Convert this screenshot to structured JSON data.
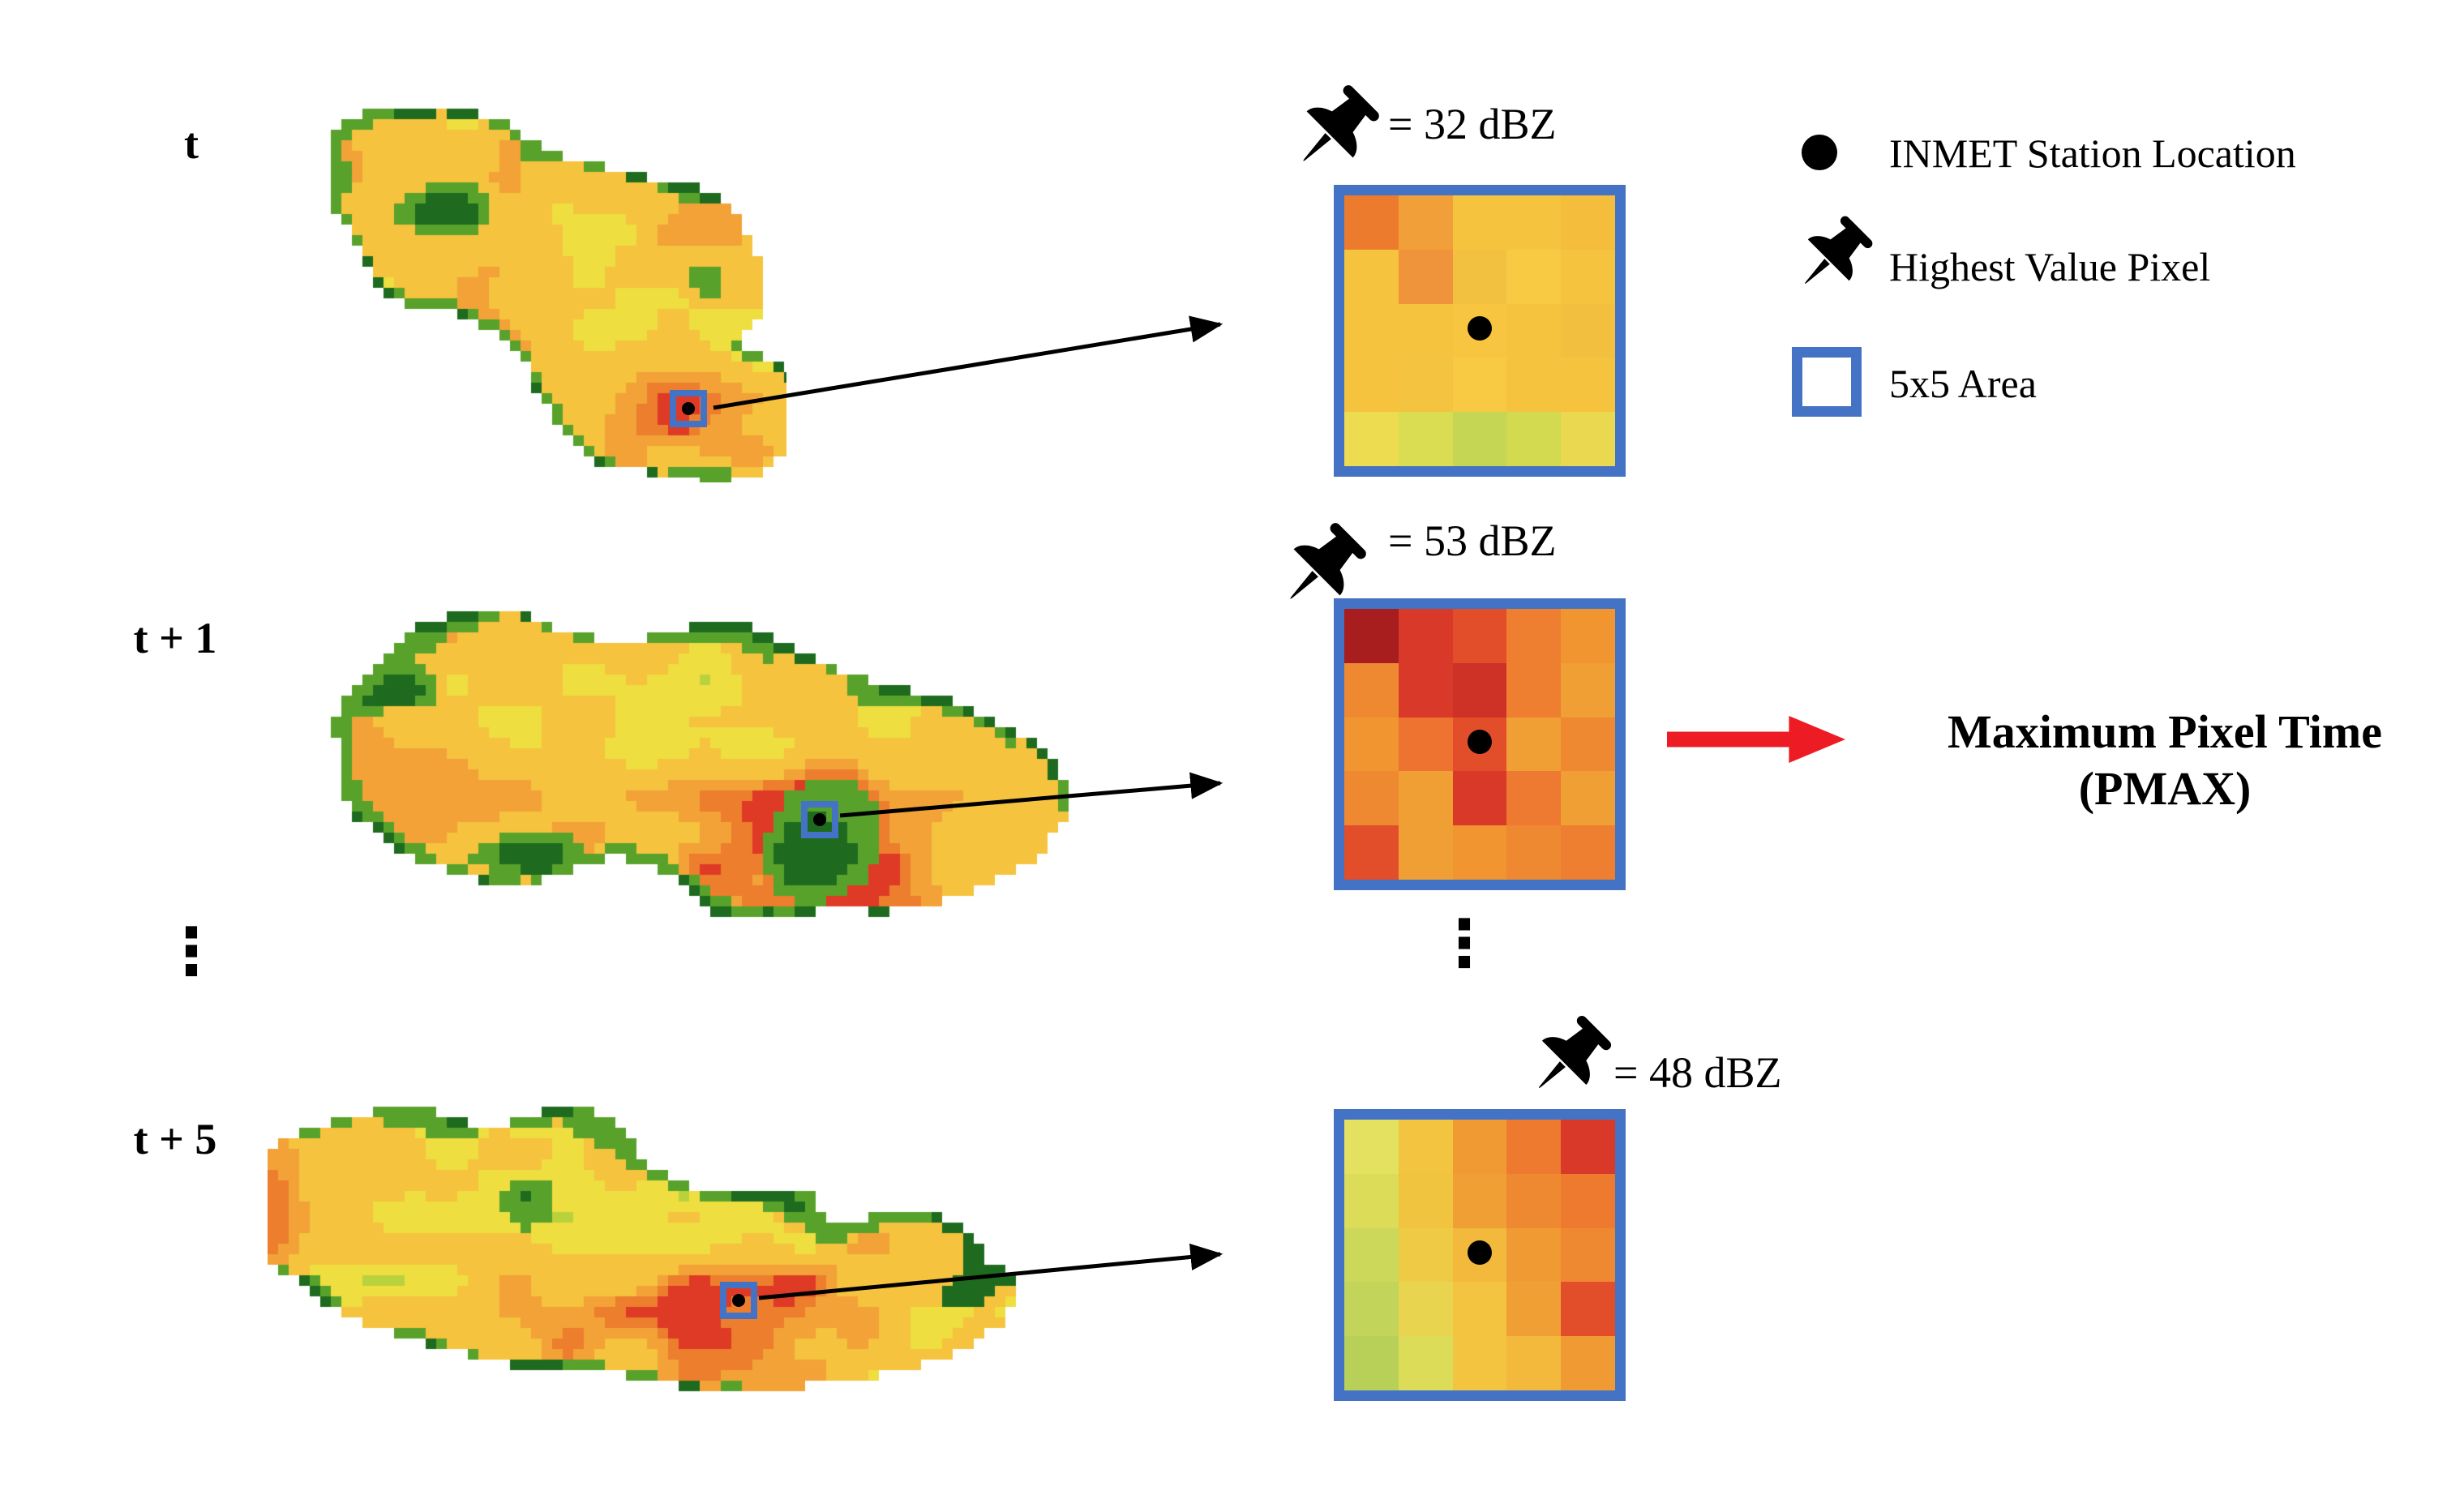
{
  "colors": {
    "background": "#ffffff",
    "frame_blue": "#4472c4",
    "arrow_black": "#000000",
    "arrow_red": "#ed1c24",
    "map_palette": {
      "g1": "#1e6b1f",
      "g2": "#58a22c",
      "g3": "#b9d23c",
      "y1": "#eede40",
      "y2": "#f5c33d",
      "o1": "#f2a237",
      "o2": "#ec7e2d",
      "r1": "#df3a26"
    }
  },
  "rows": [
    {
      "time_label": "t",
      "dbz_label": "= 32 dBZ"
    },
    {
      "time_label": "t + 1",
      "dbz_label": "= 53 dBZ"
    },
    {
      "time_label": "t + 5",
      "dbz_label": "= 48 dBZ"
    }
  ],
  "grids": [
    [
      [
        "#ec7b2d",
        "#f19f38",
        "#f6c33e",
        "#f6c33e",
        "#f4bd3c"
      ],
      [
        "#f6c33e",
        "#ef943a",
        "#f3c140",
        "#f8c942",
        "#f6c33e"
      ],
      [
        "#f6c33e",
        "#f6c33e",
        "#f7c540",
        "#f6c33e",
        "#f2bf3e"
      ],
      [
        "#f6c33e",
        "#f4c33f",
        "#f8c942",
        "#f6c33e",
        "#f6c33e"
      ],
      [
        "#eedc50",
        "#dadc52",
        "#c4d654",
        "#d4da50",
        "#ead950"
      ]
    ],
    [
      [
        "#a81d1d",
        "#d83928",
        "#e24e2a",
        "#ee7e30",
        "#f0952f"
      ],
      [
        "#ee8931",
        "#d83928",
        "#ce3126",
        "#ee7e30",
        "#f09f35"
      ],
      [
        "#f0952f",
        "#ee7330",
        "#e24e2a",
        "#f09f35",
        "#ee8931"
      ],
      [
        "#ee8931",
        "#f09f35",
        "#d83928",
        "#ee7930",
        "#f09f35"
      ],
      [
        "#e24e2a",
        "#f09f35",
        "#f0952f",
        "#ee8931",
        "#ee7e30"
      ]
    ],
    [
      [
        "#e4e060",
        "#f2c43f",
        "#f09a33",
        "#ee7a30",
        "#d83928"
      ],
      [
        "#dcdc58",
        "#f0c43f",
        "#f09f35",
        "#ee8931",
        "#ee7a30"
      ],
      [
        "#ccd85a",
        "#eeca45",
        "#f2b93c",
        "#f09a33",
        "#ee8931"
      ],
      [
        "#c2d45a",
        "#e8d44e",
        "#f2c43f",
        "#f09f35",
        "#e24e2a"
      ],
      [
        "#b8d058",
        "#dcdc58",
        "#f2c43f",
        "#f2b93c",
        "#f09a33"
      ]
    ]
  ],
  "legend": {
    "items": [
      {
        "icon": "station-dot",
        "label": "INMET Station Location"
      },
      {
        "icon": "pushpin",
        "label": "Highest Value Pixel"
      },
      {
        "icon": "blue-square",
        "label": "5x5 Area"
      }
    ]
  },
  "pmax": {
    "line1": "Maximum Pixel Time",
    "line2": "(PMAX)"
  },
  "ellipsis": "⋮"
}
